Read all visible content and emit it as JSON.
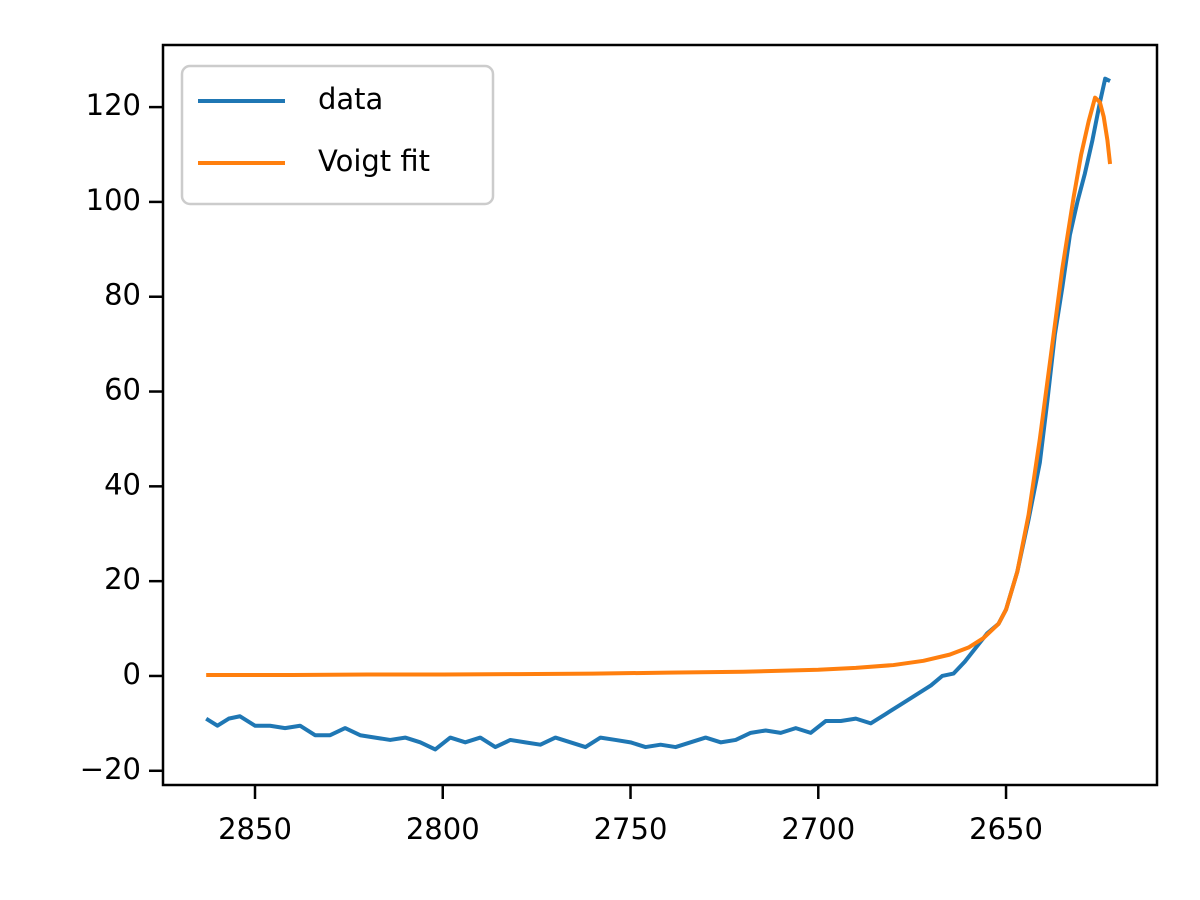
{
  "chart_data": {
    "type": "line",
    "series": [
      {
        "name": "data",
        "color": "#1f77b4",
        "x": [
          2863,
          2860,
          2857,
          2854,
          2850,
          2846,
          2842,
          2838,
          2834,
          2830,
          2826,
          2822,
          2818,
          2814,
          2810,
          2806,
          2802,
          2798,
          2794,
          2790,
          2786,
          2782,
          2778,
          2774,
          2770,
          2766,
          2762,
          2758,
          2754,
          2750,
          2746,
          2742,
          2738,
          2734,
          2730,
          2726,
          2722,
          2718,
          2714,
          2710,
          2706,
          2702,
          2698,
          2694,
          2690,
          2686,
          2682,
          2678,
          2674,
          2670,
          2667,
          2664,
          2661,
          2658,
          2655,
          2652,
          2650,
          2647,
          2644,
          2641,
          2639,
          2637,
          2635,
          2633,
          2631,
          2629,
          2627,
          2625,
          2623.6,
          2622.3
        ],
        "values": [
          -9,
          -10.5,
          -9,
          -8.5,
          -10.5,
          -10.5,
          -11,
          -10.5,
          -12.5,
          -12.5,
          -11,
          -12.5,
          -13,
          -13.5,
          -13,
          -14,
          -15.5,
          -13,
          -14,
          -13,
          -15,
          -13.5,
          -14,
          -14.5,
          -13,
          -14,
          -15,
          -13,
          -13.5,
          -14,
          -15,
          -14.5,
          -15,
          -14,
          -13,
          -14,
          -13.5,
          -12,
          -11.5,
          -12,
          -11,
          -12,
          -9.5,
          -9.5,
          -9,
          -10,
          -8,
          -6,
          -4,
          -2,
          0,
          0.5,
          3,
          6,
          9,
          11,
          14,
          22,
          33,
          45,
          58,
          72,
          82,
          93,
          100,
          106,
          113,
          121,
          126,
          125.5
        ]
      },
      {
        "name": "Voigt fit",
        "color": "#ff7f0e",
        "x": [
          2863,
          2840,
          2820,
          2800,
          2780,
          2760,
          2740,
          2720,
          2700,
          2690,
          2680,
          2672,
          2665,
          2660,
          2656,
          2652,
          2650,
          2647,
          2644,
          2641,
          2638,
          2635,
          2632,
          2630,
          2628,
          2626.3,
          2625,
          2624,
          2623,
          2622.3
        ],
        "values": [
          0.2,
          0.2,
          0.3,
          0.3,
          0.4,
          0.5,
          0.7,
          0.9,
          1.3,
          1.7,
          2.3,
          3.2,
          4.5,
          6,
          8,
          11,
          14,
          22,
          34,
          50,
          68,
          86,
          101,
          110,
          117,
          122,
          121,
          118,
          113,
          108
        ]
      }
    ],
    "xlim": [
      2874.5,
      2609.8
    ],
    "xticks": [
      2850,
      2800,
      2750,
      2700,
      2650
    ],
    "ylim": [
      -23,
      133.1
    ],
    "yticks": [
      {
        "value": -20,
        "label": "−20"
      },
      0,
      20,
      40,
      60,
      80,
      100,
      120
    ],
    "grid": false,
    "legend": "upper-left"
  }
}
